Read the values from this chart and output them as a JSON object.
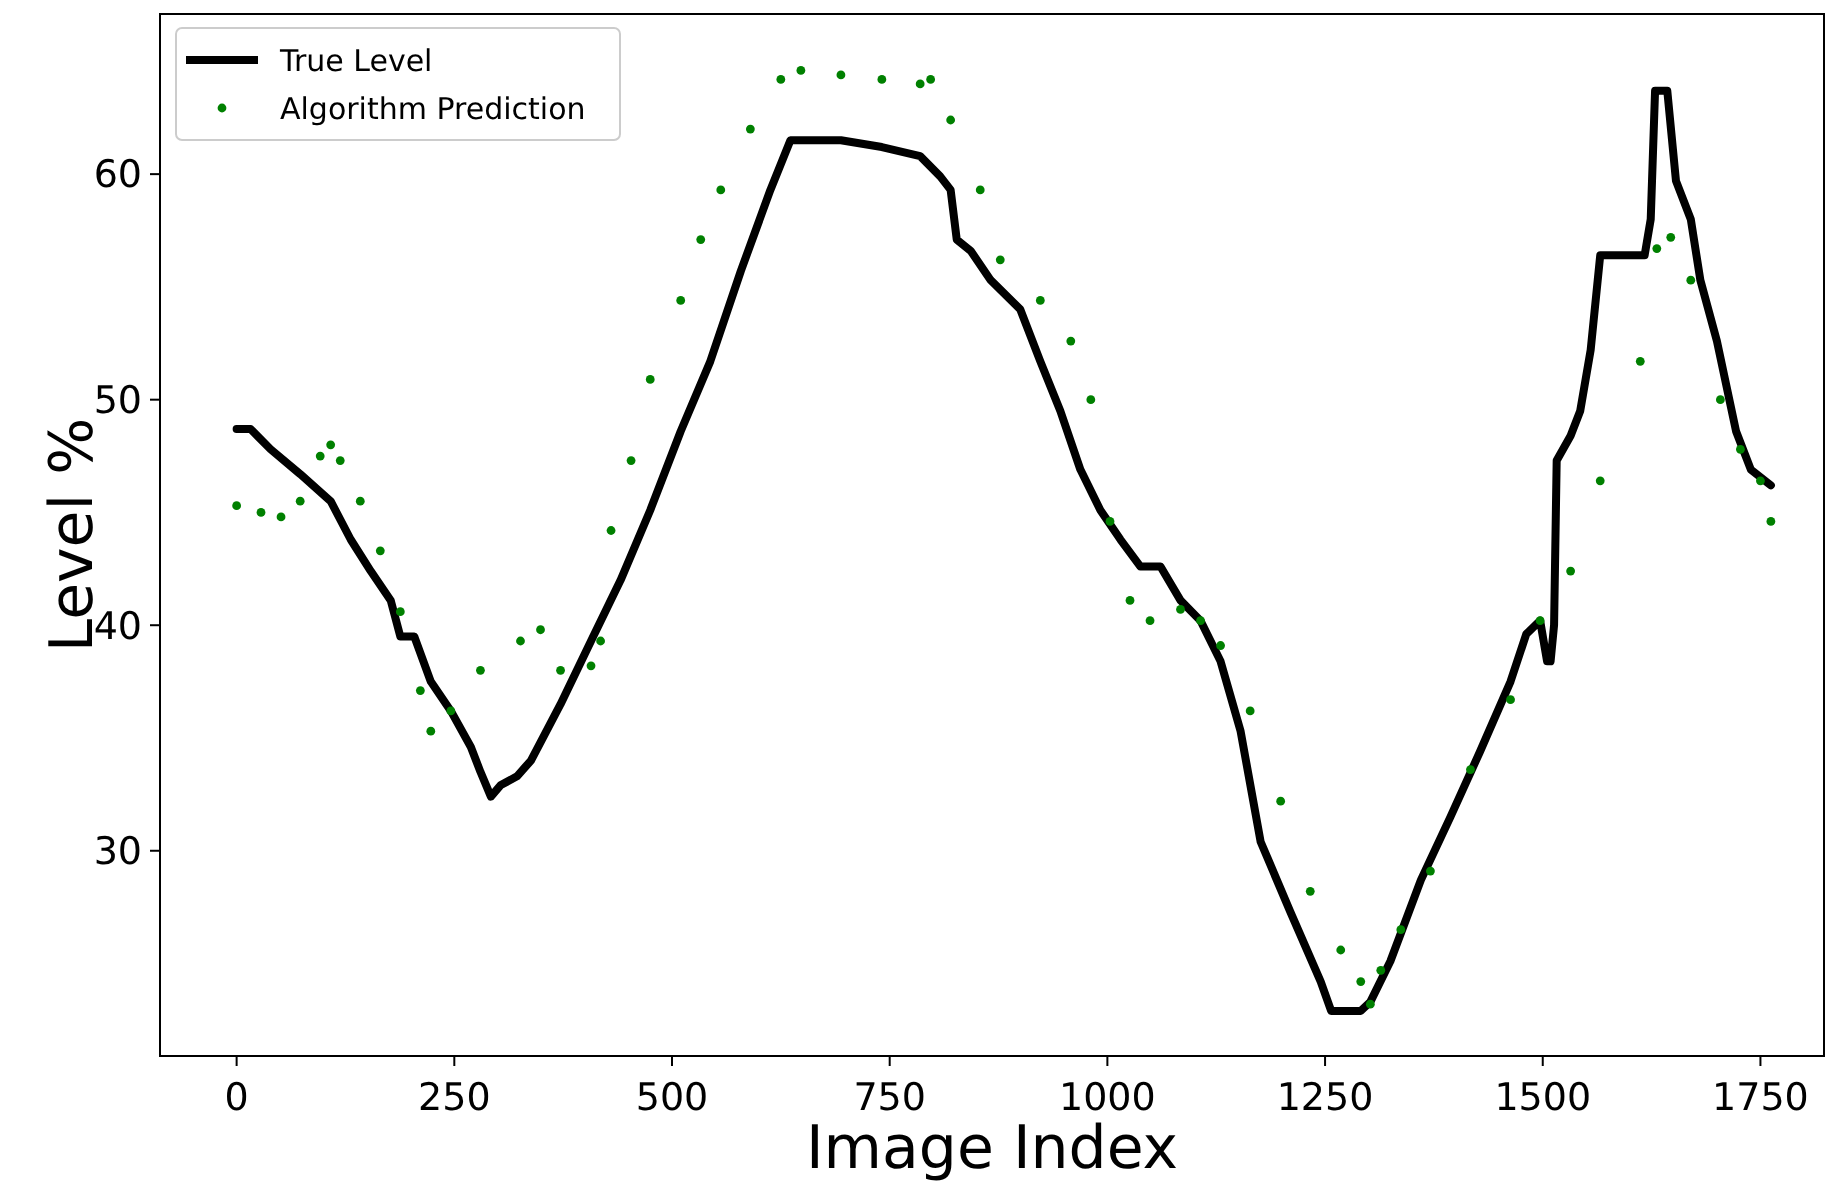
{
  "chart_data": {
    "type": "line",
    "xlabel": "Image Index",
    "ylabel": "Level %",
    "xlim": [
      -88,
      1823
    ],
    "ylim": [
      20.9,
      67.1
    ],
    "xticks": [
      0,
      250,
      500,
      750,
      1000,
      1250,
      1500,
      1750
    ],
    "yticks": [
      30,
      40,
      50,
      60
    ],
    "grid": false,
    "legend": "top left",
    "series": [
      {
        "name": "True Level",
        "color": "#000000",
        "line_style": "solid",
        "marker": "none",
        "x": [
          0,
          16,
          39,
          73,
          108,
          131,
          154,
          177,
          188,
          204,
          223,
          246,
          269,
          280,
          292,
          303,
          322,
          338,
          372,
          407,
          441,
          475,
          510,
          544,
          579,
          613,
          636,
          694,
          741,
          785,
          808,
          820,
          827,
          843,
          866,
          900,
          923,
          946,
          969,
          992,
          1015,
          1038,
          1061,
          1084,
          1107,
          1130,
          1153,
          1176,
          1210,
          1245,
          1257,
          1291,
          1302,
          1325,
          1360,
          1394,
          1428,
          1463,
          1481,
          1497,
          1505,
          1509,
          1513,
          1516,
          1532,
          1543,
          1555,
          1566,
          1617,
          1624,
          1629,
          1643,
          1653,
          1670,
          1681,
          1700,
          1722,
          1739,
          1762
        ],
        "values": [
          48.7,
          48.7,
          47.8,
          46.7,
          45.5,
          43.8,
          42.4,
          41.1,
          39.5,
          39.5,
          37.5,
          36.2,
          34.6,
          33.5,
          32.4,
          32.9,
          33.3,
          34,
          36.5,
          39.3,
          42,
          45.1,
          48.6,
          51.7,
          55.7,
          59.3,
          61.5,
          61.5,
          61.2,
          60.8,
          59.9,
          59.3,
          57.1,
          56.6,
          55.3,
          54,
          51.7,
          49.5,
          46.9,
          45.1,
          43.8,
          42.6,
          42.6,
          41.1,
          40.2,
          38.4,
          35.3,
          30.4,
          27.3,
          24.2,
          22.9,
          22.9,
          23.3,
          25.1,
          28.7,
          31.5,
          34.4,
          37.5,
          39.6,
          40.2,
          38.4,
          38.4,
          40,
          47.3,
          48.4,
          49.5,
          52.2,
          56.4,
          56.4,
          58,
          63.7,
          63.7,
          59.7,
          58,
          55.3,
          52.6,
          48.6,
          46.9,
          46.2
        ]
      },
      {
        "name": "Algorithm Prediction",
        "type": "scatter",
        "color": "#008000",
        "marker": "circle",
        "x": [
          0,
          28,
          51,
          73,
          96,
          108,
          119,
          142,
          165,
          188,
          211,
          223,
          246,
          280,
          326,
          349,
          372,
          407,
          418,
          430,
          453,
          475,
          510,
          533,
          556,
          590,
          625,
          648,
          694,
          741,
          785,
          797,
          820,
          854,
          877,
          923,
          958,
          981,
          1003,
          1026,
          1049,
          1084,
          1107,
          1130,
          1164,
          1199,
          1233,
          1268,
          1291,
          1302,
          1314,
          1337,
          1371,
          1417,
          1463,
          1497,
          1532,
          1566,
          1612,
          1631,
          1647,
          1670,
          1704,
          1727,
          1750,
          1762
        ],
        "values": [
          45.3,
          45,
          44.8,
          45.5,
          47.5,
          48,
          47.3,
          45.5,
          43.3,
          40.6,
          37.1,
          35.3,
          36.2,
          38,
          39.3,
          39.8,
          38,
          38.2,
          39.3,
          44.2,
          47.3,
          50.9,
          54.4,
          57.1,
          59.3,
          62,
          64.2,
          64.6,
          64.4,
          64.2,
          64,
          64.2,
          62.4,
          59.3,
          56.2,
          54.4,
          52.6,
          50,
          44.6,
          41.1,
          40.2,
          40.7,
          40.2,
          39.1,
          36.2,
          32.2,
          28.2,
          25.6,
          24.2,
          23.2,
          24.7,
          26.5,
          29.1,
          33.6,
          36.7,
          40.2,
          42.4,
          46.4,
          51.7,
          56.7,
          57.2,
          55.3,
          50,
          47.8,
          46.4,
          44.6
        ]
      }
    ]
  }
}
